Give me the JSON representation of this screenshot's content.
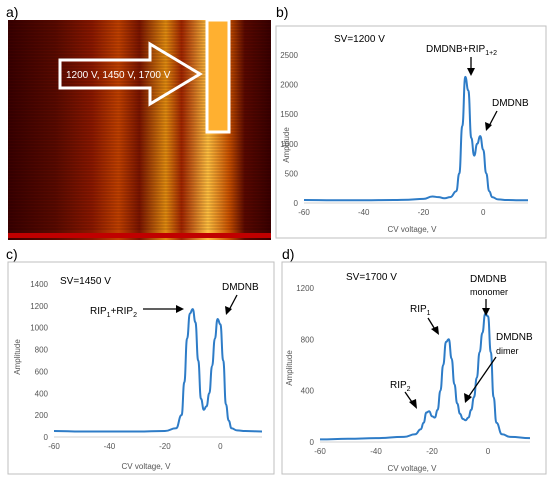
{
  "panel_labels": {
    "a": "a)",
    "b": "b)",
    "c": "c)",
    "d": "d)"
  },
  "heatmap": {
    "type": "heatmap",
    "arrow_text": "1200 V, 1450 V, 1700 V",
    "colors": {
      "dark": "#3a0000",
      "mid": "#a81c00",
      "hot": "#ff8c00",
      "bright": "#ffd37a"
    }
  },
  "chart_data": [
    {
      "id": "b",
      "type": "line",
      "title": "SV=1200  V",
      "xlabel": "CV voltage, V",
      "ylabel": "Amplitude",
      "xlim": [
        -60,
        15
      ],
      "ylim": [
        0,
        2500
      ],
      "xticks": [
        -60,
        -40,
        -20,
        0
      ],
      "yticks": [
        0,
        500,
        1000,
        1500,
        2000,
        2500
      ],
      "color": "#2e7cc7",
      "x": [
        -60,
        -50,
        -40,
        -30,
        -25,
        -20,
        -17,
        -15,
        -13,
        -11,
        -9,
        -8,
        -7,
        -6,
        -5,
        -4,
        -3,
        -2,
        -1,
        0,
        1,
        2,
        3,
        5,
        8,
        12,
        15
      ],
      "y": [
        50,
        45,
        45,
        50,
        55,
        70,
        110,
        100,
        80,
        100,
        200,
        500,
        1300,
        2130,
        1900,
        1100,
        800,
        1000,
        1130,
        900,
        500,
        200,
        100,
        60,
        50,
        45,
        45
      ],
      "annotations": [
        {
          "text": "DMDNB+RIP",
          "sub": "1+2"
        },
        {
          "text": "DMDNB"
        }
      ]
    },
    {
      "id": "c",
      "type": "line",
      "title": "SV=1450  V",
      "xlabel": "CV voltage, V",
      "ylabel": "Amplitude",
      "xlim": [
        -60,
        15
      ],
      "ylim": [
        0,
        1400
      ],
      "xticks": [
        -60,
        -40,
        -20,
        0
      ],
      "yticks": [
        0,
        200,
        400,
        600,
        800,
        1000,
        1200,
        1400
      ],
      "color": "#2e7cc7",
      "x": [
        -60,
        -50,
        -40,
        -30,
        -20,
        -16,
        -14,
        -13,
        -12,
        -11,
        -10,
        -9,
        -8,
        -7,
        -6,
        -5,
        -4,
        -3,
        -2,
        -1,
        0,
        1,
        2,
        3,
        4,
        6,
        9,
        15
      ],
      "y": [
        55,
        50,
        50,
        50,
        55,
        80,
        200,
        500,
        900,
        1130,
        1170,
        1050,
        700,
        350,
        250,
        280,
        400,
        650,
        900,
        1080,
        1030,
        700,
        300,
        150,
        80,
        60,
        55,
        50
      ],
      "annotations": [
        {
          "parts": [
            [
              "RIP",
              ""
            ],
            [
              "1",
              "sub"
            ],
            [
              "+RIP",
              ""
            ],
            [
              "2",
              "sub"
            ]
          ]
        },
        {
          "text": "DMDNB"
        }
      ]
    },
    {
      "id": "d",
      "type": "line",
      "title": "SV=1700  V",
      "xlabel": "CV voltage, V",
      "ylabel": "Amplitude",
      "xlim": [
        -60,
        15
      ],
      "ylim": [
        0,
        1200
      ],
      "xticks": [
        -60,
        -40,
        -20,
        0
      ],
      "yticks": [
        0,
        400,
        800,
        1200
      ],
      "color": "#2e7cc7",
      "x": [
        -60,
        -50,
        -40,
        -30,
        -26,
        -24,
        -23,
        -22,
        -21,
        -20,
        -19,
        -18,
        -17,
        -16,
        -15,
        -14,
        -13,
        -12,
        -11,
        -10,
        -9,
        -8,
        -7,
        -6,
        -5,
        -4,
        -3,
        -2,
        -1,
        0,
        1,
        2,
        3,
        5,
        8,
        15
      ],
      "y": [
        20,
        25,
        30,
        40,
        60,
        100,
        150,
        230,
        240,
        200,
        190,
        250,
        400,
        600,
        780,
        800,
        650,
        450,
        300,
        220,
        180,
        170,
        190,
        250,
        350,
        500,
        700,
        850,
        1000,
        980,
        700,
        350,
        150,
        60,
        40,
        30
      ],
      "annotations": [
        {
          "parts": [
            [
              "RIP",
              ""
            ],
            [
              "2",
              "sub"
            ]
          ]
        },
        {
          "parts": [
            [
              "RIP",
              ""
            ],
            [
              "1",
              "sub"
            ]
          ]
        },
        {
          "text": "DMDNB",
          "sub_line": "monomer"
        },
        {
          "text": "DMDNB",
          "sub_line": "dimer"
        }
      ]
    }
  ]
}
